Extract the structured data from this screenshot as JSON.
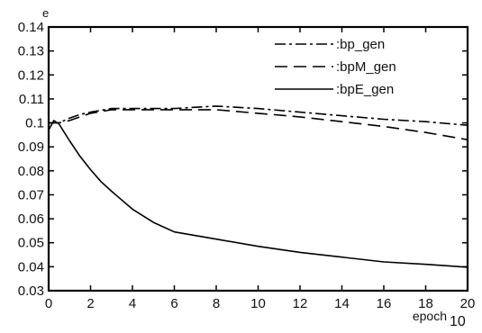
{
  "chart_data": {
    "type": "line",
    "ylabel": "e",
    "xlabel": "epoch",
    "x_scale_note": "10",
    "xlim": [
      0,
      20
    ],
    "ylim": [
      0.03,
      0.14
    ],
    "xticks": [
      0,
      2,
      4,
      6,
      8,
      10,
      12,
      14,
      16,
      18,
      20
    ],
    "xtick_labels": [
      "0",
      "2",
      "4",
      "6",
      "8",
      "10",
      "12",
      "14",
      "16",
      "18",
      "20"
    ],
    "yticks": [
      0.03,
      0.04,
      0.05,
      0.06,
      0.07,
      0.08,
      0.09,
      0.1,
      0.11,
      0.12,
      0.13,
      0.14
    ],
    "ytick_labels": [
      "0.03",
      "0.04",
      "0.05",
      "0.06",
      "0.07",
      "0.08",
      "0.09",
      "0.1",
      "0.11",
      "0.12",
      "0.13",
      "0.14"
    ],
    "grid": false,
    "legend_position": "top-right",
    "series": [
      {
        "name": ":bp_gen",
        "style": "dash-dot",
        "color": "#000000",
        "x": [
          0,
          0.5,
          1,
          1.5,
          2,
          3,
          4,
          5,
          6,
          7,
          8,
          10,
          12,
          14,
          16,
          18,
          20
        ],
        "y": [
          0.1,
          0.1,
          0.102,
          0.1035,
          0.1045,
          0.106,
          0.106,
          0.106,
          0.106,
          0.1065,
          0.107,
          0.106,
          0.1045,
          0.103,
          0.1015,
          0.1005,
          0.099
        ]
      },
      {
        "name": ":bpM_gen",
        "style": "dashed",
        "color": "#000000",
        "x": [
          0,
          0.5,
          1,
          1.5,
          2,
          3,
          4,
          5,
          6,
          7,
          8,
          10,
          12,
          14,
          16,
          18,
          20
        ],
        "y": [
          0.1,
          0.1,
          0.101,
          0.1025,
          0.104,
          0.1055,
          0.1055,
          0.1055,
          0.1055,
          0.1055,
          0.1055,
          0.104,
          0.1025,
          0.1005,
          0.0985,
          0.096,
          0.093
        ]
      },
      {
        "name": ":bpE_gen",
        "style": "solid",
        "color": "#000000",
        "x": [
          0,
          0.25,
          0.5,
          1,
          1.5,
          2,
          2.5,
          3,
          4,
          5,
          6,
          7,
          8,
          10,
          12,
          14,
          16,
          18,
          20
        ],
        "y": [
          0.097,
          0.101,
          0.0995,
          0.0925,
          0.086,
          0.0805,
          0.0755,
          0.0715,
          0.064,
          0.0585,
          0.0545,
          0.053,
          0.0515,
          0.0485,
          0.046,
          0.044,
          0.042,
          0.041,
          0.0398
        ]
      }
    ]
  }
}
